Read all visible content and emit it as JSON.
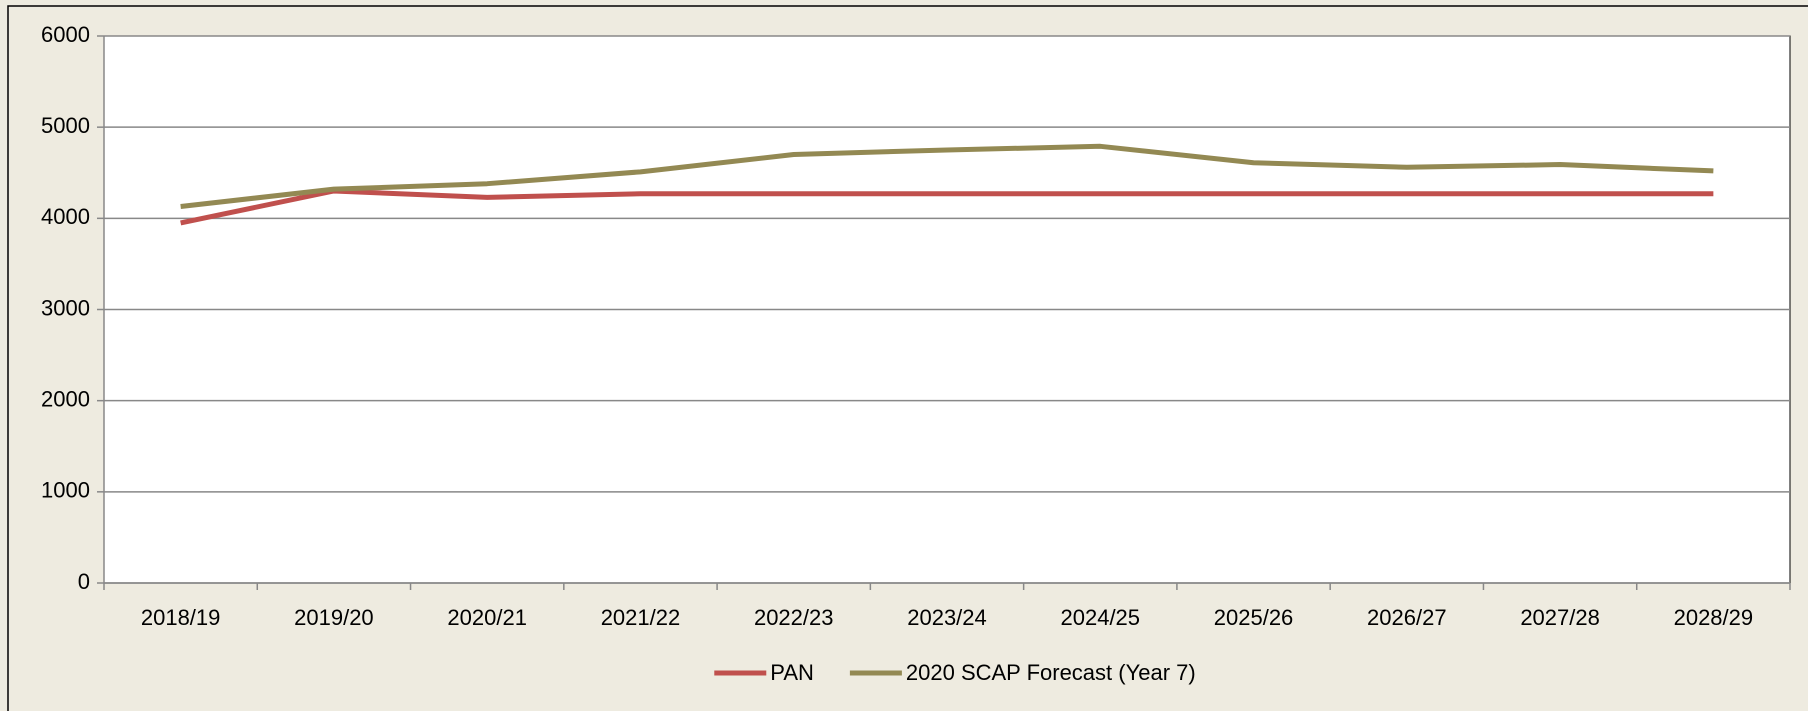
{
  "chart_data": {
    "type": "line",
    "categories": [
      "2018/19",
      "2019/20",
      "2020/21",
      "2021/22",
      "2022/23",
      "2023/24",
      "2024/25",
      "2025/26",
      "2026/27",
      "2027/28",
      "2028/29"
    ],
    "series": [
      {
        "name": "PAN",
        "color": "#c0504d",
        "values": [
          3950,
          4300,
          4230,
          4270,
          4270,
          4270,
          4270,
          4270,
          4270,
          4270,
          4270
        ]
      },
      {
        "name": "2020 SCAP Forecast (Year 7)",
        "color": "#938953",
        "values": [
          4130,
          4320,
          4380,
          4510,
          4700,
          4750,
          4790,
          4610,
          4560,
          4590,
          4520
        ]
      }
    ],
    "ylim": [
      0,
      6000
    ],
    "yticks": [
      0,
      1000,
      2000,
      3000,
      4000,
      5000,
      6000
    ],
    "grid": true,
    "legend": "bottom"
  }
}
